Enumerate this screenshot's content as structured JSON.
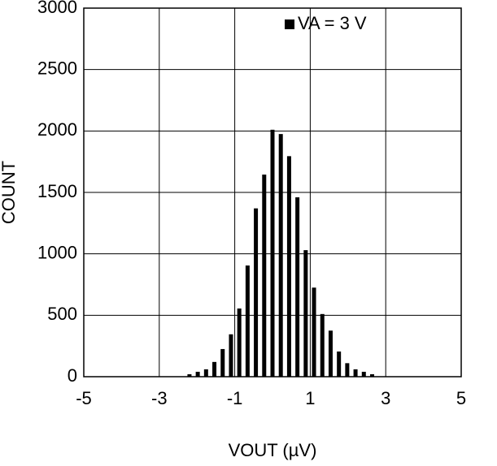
{
  "chart_data": {
    "type": "bar",
    "x": [
      -2.2,
      -1.98,
      -1.76,
      -1.54,
      -1.32,
      -1.1,
      -0.88,
      -0.66,
      -0.44,
      -0.22,
      0,
      0.22,
      0.44,
      0.66,
      0.88,
      1.1,
      1.32,
      1.54,
      1.76,
      1.98,
      2.2,
      2.42,
      2.64
    ],
    "series": [
      {
        "name": "VA = 3 V",
        "color": "#000000",
        "values": [
          20,
          40,
          60,
          120,
          225,
          345,
          555,
          905,
          1370,
          1645,
          2010,
          1975,
          1795,
          1460,
          1030,
          725,
          510,
          375,
          205,
          110,
          60,
          40,
          20
        ]
      }
    ],
    "x_label": "VOUT (µV)",
    "y_label": "COUNT",
    "xlim": [
      -5,
      5
    ],
    "xticks": [
      -5,
      -3,
      -1,
      1,
      3,
      5
    ],
    "ylim": [
      0,
      3000
    ],
    "yticks": [
      0,
      500,
      1000,
      1500,
      2000,
      2500,
      3000
    ],
    "grid": true,
    "legend": "top-right"
  }
}
